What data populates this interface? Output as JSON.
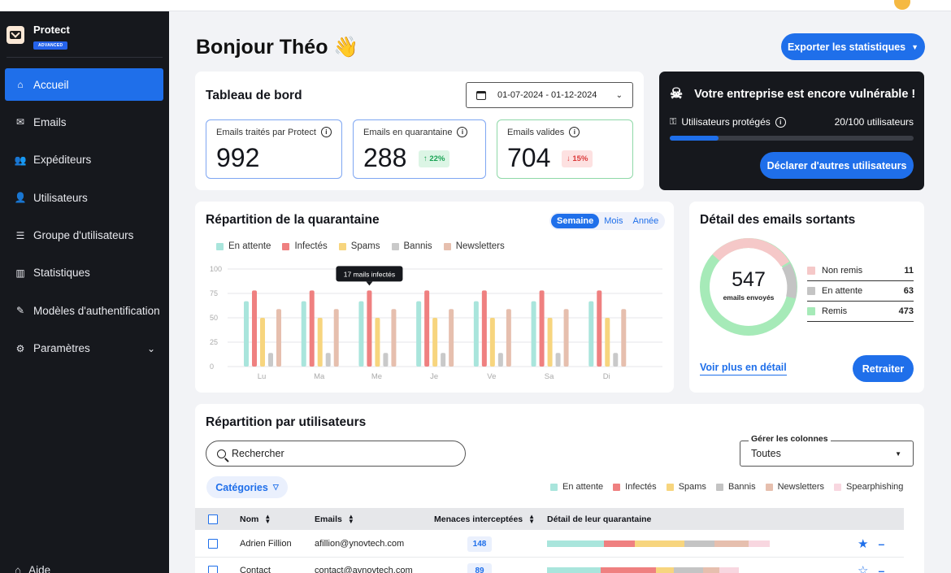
{
  "app": {
    "name": "Protect",
    "badge": "ADVANCED"
  },
  "sidebar": {
    "items": [
      {
        "label": "Accueil",
        "icon": "home-icon",
        "glyph": "⌂",
        "active": true
      },
      {
        "label": "Emails",
        "icon": "mail-icon",
        "glyph": "✉"
      },
      {
        "label": "Expéditeurs",
        "icon": "users-group-icon",
        "glyph": "👥"
      },
      {
        "label": "Utilisateurs",
        "icon": "user-icon",
        "glyph": "👤"
      },
      {
        "label": "Groupe d'utilisateurs",
        "icon": "list-icon",
        "glyph": "☰"
      },
      {
        "label": "Statistiques",
        "icon": "chart-icon",
        "glyph": "▥"
      },
      {
        "label": "Modèles d'authentification",
        "icon": "pen-icon",
        "glyph": "✎"
      },
      {
        "label": "Paramètres",
        "icon": "gear-icon",
        "glyph": "⚙",
        "expandable": true
      }
    ],
    "help": "Aide"
  },
  "header": {
    "greeting": "Bonjour Théo 👋",
    "export_label": "Exporter les statistiques"
  },
  "dashboard": {
    "title": "Tableau de bord",
    "date_range": "01-07-2024 - 01-12-2024",
    "stats": [
      {
        "label": "Emails traités par Protect",
        "value": "992",
        "border": "#7ea6f2"
      },
      {
        "label": "Emails en quarantaine",
        "value": "288",
        "delta": "↑ 22%",
        "trend": "up",
        "border": "#7ea6f2"
      },
      {
        "label": "Emails valides",
        "value": "704",
        "delta": "↓ 15%",
        "trend": "down",
        "border": "#8fd8a8"
      }
    ]
  },
  "vulnerable": {
    "title": "Votre entreprise est encore vulnérable !",
    "protected_label": "Utilisateurs protégés",
    "protected_value": "20/100 utilisateurs",
    "protected_fraction": 0.2,
    "button": "Déclarer d'autres utilisateurs"
  },
  "quarantine": {
    "title": "Répartition de la quarantaine",
    "periods": [
      "Semaine",
      "Mois",
      "Année"
    ],
    "tooltip": "17 mails infectés"
  },
  "chart_data": {
    "type": "bar",
    "categories": [
      "Lu",
      "Ma",
      "Me",
      "Je",
      "Ve",
      "Sa",
      "Di"
    ],
    "ylim": [
      0,
      100
    ],
    "yticks": [
      0,
      25,
      50,
      75,
      100
    ],
    "grid": true,
    "legend": "top-left",
    "series": [
      {
        "name": "En attente",
        "color": "#a9e5dc",
        "values": [
          67,
          67,
          67,
          67,
          67,
          67,
          67
        ]
      },
      {
        "name": "Infectés",
        "color": "#ef8080",
        "values": [
          78,
          78,
          78,
          78,
          78,
          78,
          78
        ]
      },
      {
        "name": "Spams",
        "color": "#f7d57e",
        "values": [
          50,
          50,
          50,
          50,
          50,
          50,
          50
        ]
      },
      {
        "name": "Bannis",
        "color": "#c9c9c9",
        "values": [
          14,
          14,
          14,
          14,
          14,
          14,
          14
        ]
      },
      {
        "name": "Newsletters",
        "color": "#e6bfae",
        "values": [
          59,
          59,
          59,
          59,
          59,
          59,
          59
        ]
      }
    ]
  },
  "outgoing": {
    "title": "Détail des emails sortants",
    "total": "547",
    "total_label": "emails envoyés",
    "rows": [
      {
        "label": "Non remis",
        "value": "11",
        "color": "#f5c8c8"
      },
      {
        "label": "En attente",
        "value": "63",
        "color": "#c4c4c4"
      },
      {
        "label": "Remis",
        "value": "473",
        "color": "#a6eab8"
      }
    ],
    "link": "Voir plus en détail",
    "button": "Retraiter"
  },
  "users": {
    "title": "Répartition par utilisateurs",
    "search_placeholder": "Rechercher",
    "columns_label": "Gérer les colonnes",
    "columns_value": "Toutes",
    "categories_label": "Catégories",
    "legend": [
      {
        "name": "En attente",
        "color": "#a9e5dc"
      },
      {
        "name": "Infectés",
        "color": "#ef8080"
      },
      {
        "name": "Spams",
        "color": "#f7d57e"
      },
      {
        "name": "Bannis",
        "color": "#c4c4c4"
      },
      {
        "name": "Newsletters",
        "color": "#e6bfae"
      },
      {
        "name": "Spearphishing",
        "color": "#f8d7e0"
      }
    ],
    "headers": {
      "name": "Nom",
      "email": "Emails",
      "threats": "Menaces interceptées",
      "detail": "Détail de leur quarantaine"
    },
    "rows": [
      {
        "name": "Adrien Fillion",
        "email": "afillion@ynovtech.com",
        "threats": "148",
        "segments": [
          70,
          38,
          61,
          37,
          42,
          26
        ],
        "starred": true
      },
      {
        "name": "Contact",
        "email": "contact@aynovtech.com",
        "threats": "89",
        "segments": [
          66,
          68,
          22,
          36,
          20,
          24
        ],
        "starred": false
      }
    ]
  }
}
